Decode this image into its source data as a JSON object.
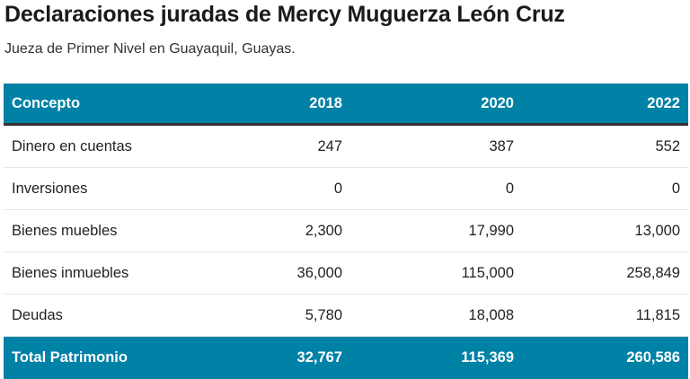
{
  "title": "Declaraciones juradas de Mercy Muguerza León Cruz",
  "subtitle": "Jueza de Primer Nivel en Guayaquil, Guayas.",
  "table": {
    "headers": [
      "Concepto",
      "2018",
      "2020",
      "2022"
    ],
    "rows": [
      [
        "Dinero en cuentas",
        "247",
        "387",
        "552"
      ],
      [
        "Inversiones",
        "0",
        "0",
        "0"
      ],
      [
        "Bienes muebles",
        "2,300",
        "17,990",
        "13,000"
      ],
      [
        "Bienes inmuebles",
        "36,000",
        "115,000",
        "258,849"
      ],
      [
        "Deudas",
        "5,780",
        "18,008",
        "11,815"
      ]
    ],
    "total": [
      "Total Patrimonio",
      "32,767",
      "115,369",
      "260,586"
    ]
  },
  "colors": {
    "header": "#0081a6"
  }
}
